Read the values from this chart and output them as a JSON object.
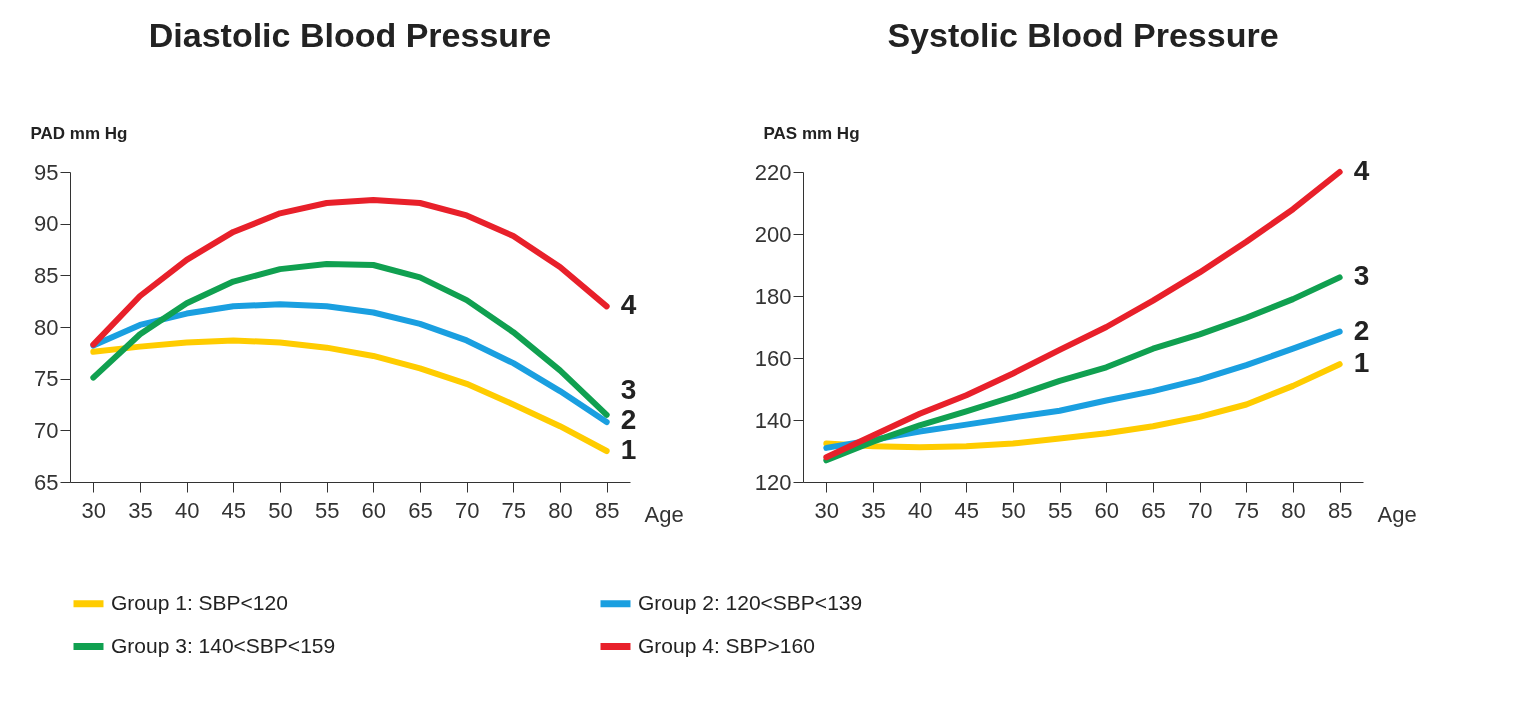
{
  "chart_data": [
    {
      "type": "line",
      "title": "Diastolic Blood Pressure",
      "xlabel": "Age",
      "ylabel": "PAD mm Hg",
      "x": [
        30,
        35,
        40,
        45,
        50,
        55,
        60,
        65,
        70,
        75,
        80,
        85
      ],
      "series": [
        {
          "name": "Group 1: SBP<120",
          "color": "#ffcc00",
          "values": [
            77.6,
            78.1,
            78.5,
            78.7,
            78.5,
            78.0,
            77.2,
            76.0,
            74.5,
            72.5,
            70.4,
            68.0
          ]
        },
        {
          "name": "Group 2: 120<SBP<139",
          "color": "#1a9fe0",
          "values": [
            78.2,
            80.2,
            81.3,
            82.0,
            82.2,
            82.0,
            81.4,
            80.3,
            78.7,
            76.5,
            73.8,
            70.8
          ]
        },
        {
          "name": "Group 3: 140<SBP<159",
          "color": "#10a050",
          "values": [
            75.1,
            79.3,
            82.3,
            84.4,
            85.6,
            86.1,
            86.0,
            84.8,
            82.6,
            79.5,
            75.8,
            71.5
          ]
        },
        {
          "name": "Group 4: SBP>160",
          "color": "#e8202a",
          "values": [
            78.3,
            83.0,
            86.5,
            89.2,
            91.0,
            92.0,
            92.3,
            92.0,
            90.8,
            88.8,
            85.8,
            82.0
          ]
        }
      ],
      "annotations": [
        "1",
        "2",
        "3",
        "4"
      ],
      "xlim": [
        27.5,
        87.5
      ],
      "xticks": [
        30,
        35,
        40,
        45,
        50,
        55,
        60,
        65,
        70,
        75,
        80,
        85
      ],
      "ylim": [
        65,
        95
      ],
      "yticks": [
        65,
        70,
        75,
        80,
        85,
        90,
        95
      ],
      "grid": false,
      "legend": "bottom",
      "marker": "none",
      "line_style": "solid"
    },
    {
      "type": "line",
      "title": "Systolic Blood Pressure",
      "xlabel": "Age",
      "ylabel": "PAS mm Hg",
      "x": [
        30,
        35,
        40,
        45,
        50,
        55,
        60,
        65,
        70,
        75,
        80,
        85
      ],
      "series": [
        {
          "name": "Group 1: SBP<120",
          "color": "#ffcc00",
          "values": [
            132.4,
            131.5,
            131.2,
            131.5,
            132.4,
            134.0,
            135.7,
            138.0,
            141.0,
            145.0,
            151.0,
            158.0
          ]
        },
        {
          "name": "Group 2: 120<SBP<139",
          "color": "#1a9fe0",
          "values": [
            131.0,
            133.6,
            136.3,
            138.5,
            140.8,
            143.0,
            146.3,
            149.3,
            153.0,
            157.7,
            163.0,
            168.5
          ]
        },
        {
          "name": "Group 3: 140<SBP<159",
          "color": "#10a050",
          "values": [
            127.0,
            133.0,
            138.3,
            142.8,
            147.5,
            152.6,
            157.0,
            163.0,
            167.6,
            173.0,
            179.0,
            186.0
          ]
        },
        {
          "name": "Group 4: SBP>160",
          "color": "#e8202a",
          "values": [
            128.0,
            135.0,
            142.0,
            148.0,
            155.0,
            162.6,
            170.0,
            178.5,
            187.6,
            197.5,
            208.0,
            220.0
          ]
        }
      ],
      "annotations": [
        "1",
        "2",
        "3",
        "4"
      ],
      "xlim": [
        27.5,
        87.5
      ],
      "xticks": [
        30,
        35,
        40,
        45,
        50,
        55,
        60,
        65,
        70,
        75,
        80,
        85
      ],
      "ylim": [
        120,
        220
      ],
      "yticks": [
        120,
        140,
        160,
        180,
        200,
        220
      ],
      "grid": false,
      "legend": "bottom",
      "marker": "none",
      "line_style": "solid"
    }
  ]
}
